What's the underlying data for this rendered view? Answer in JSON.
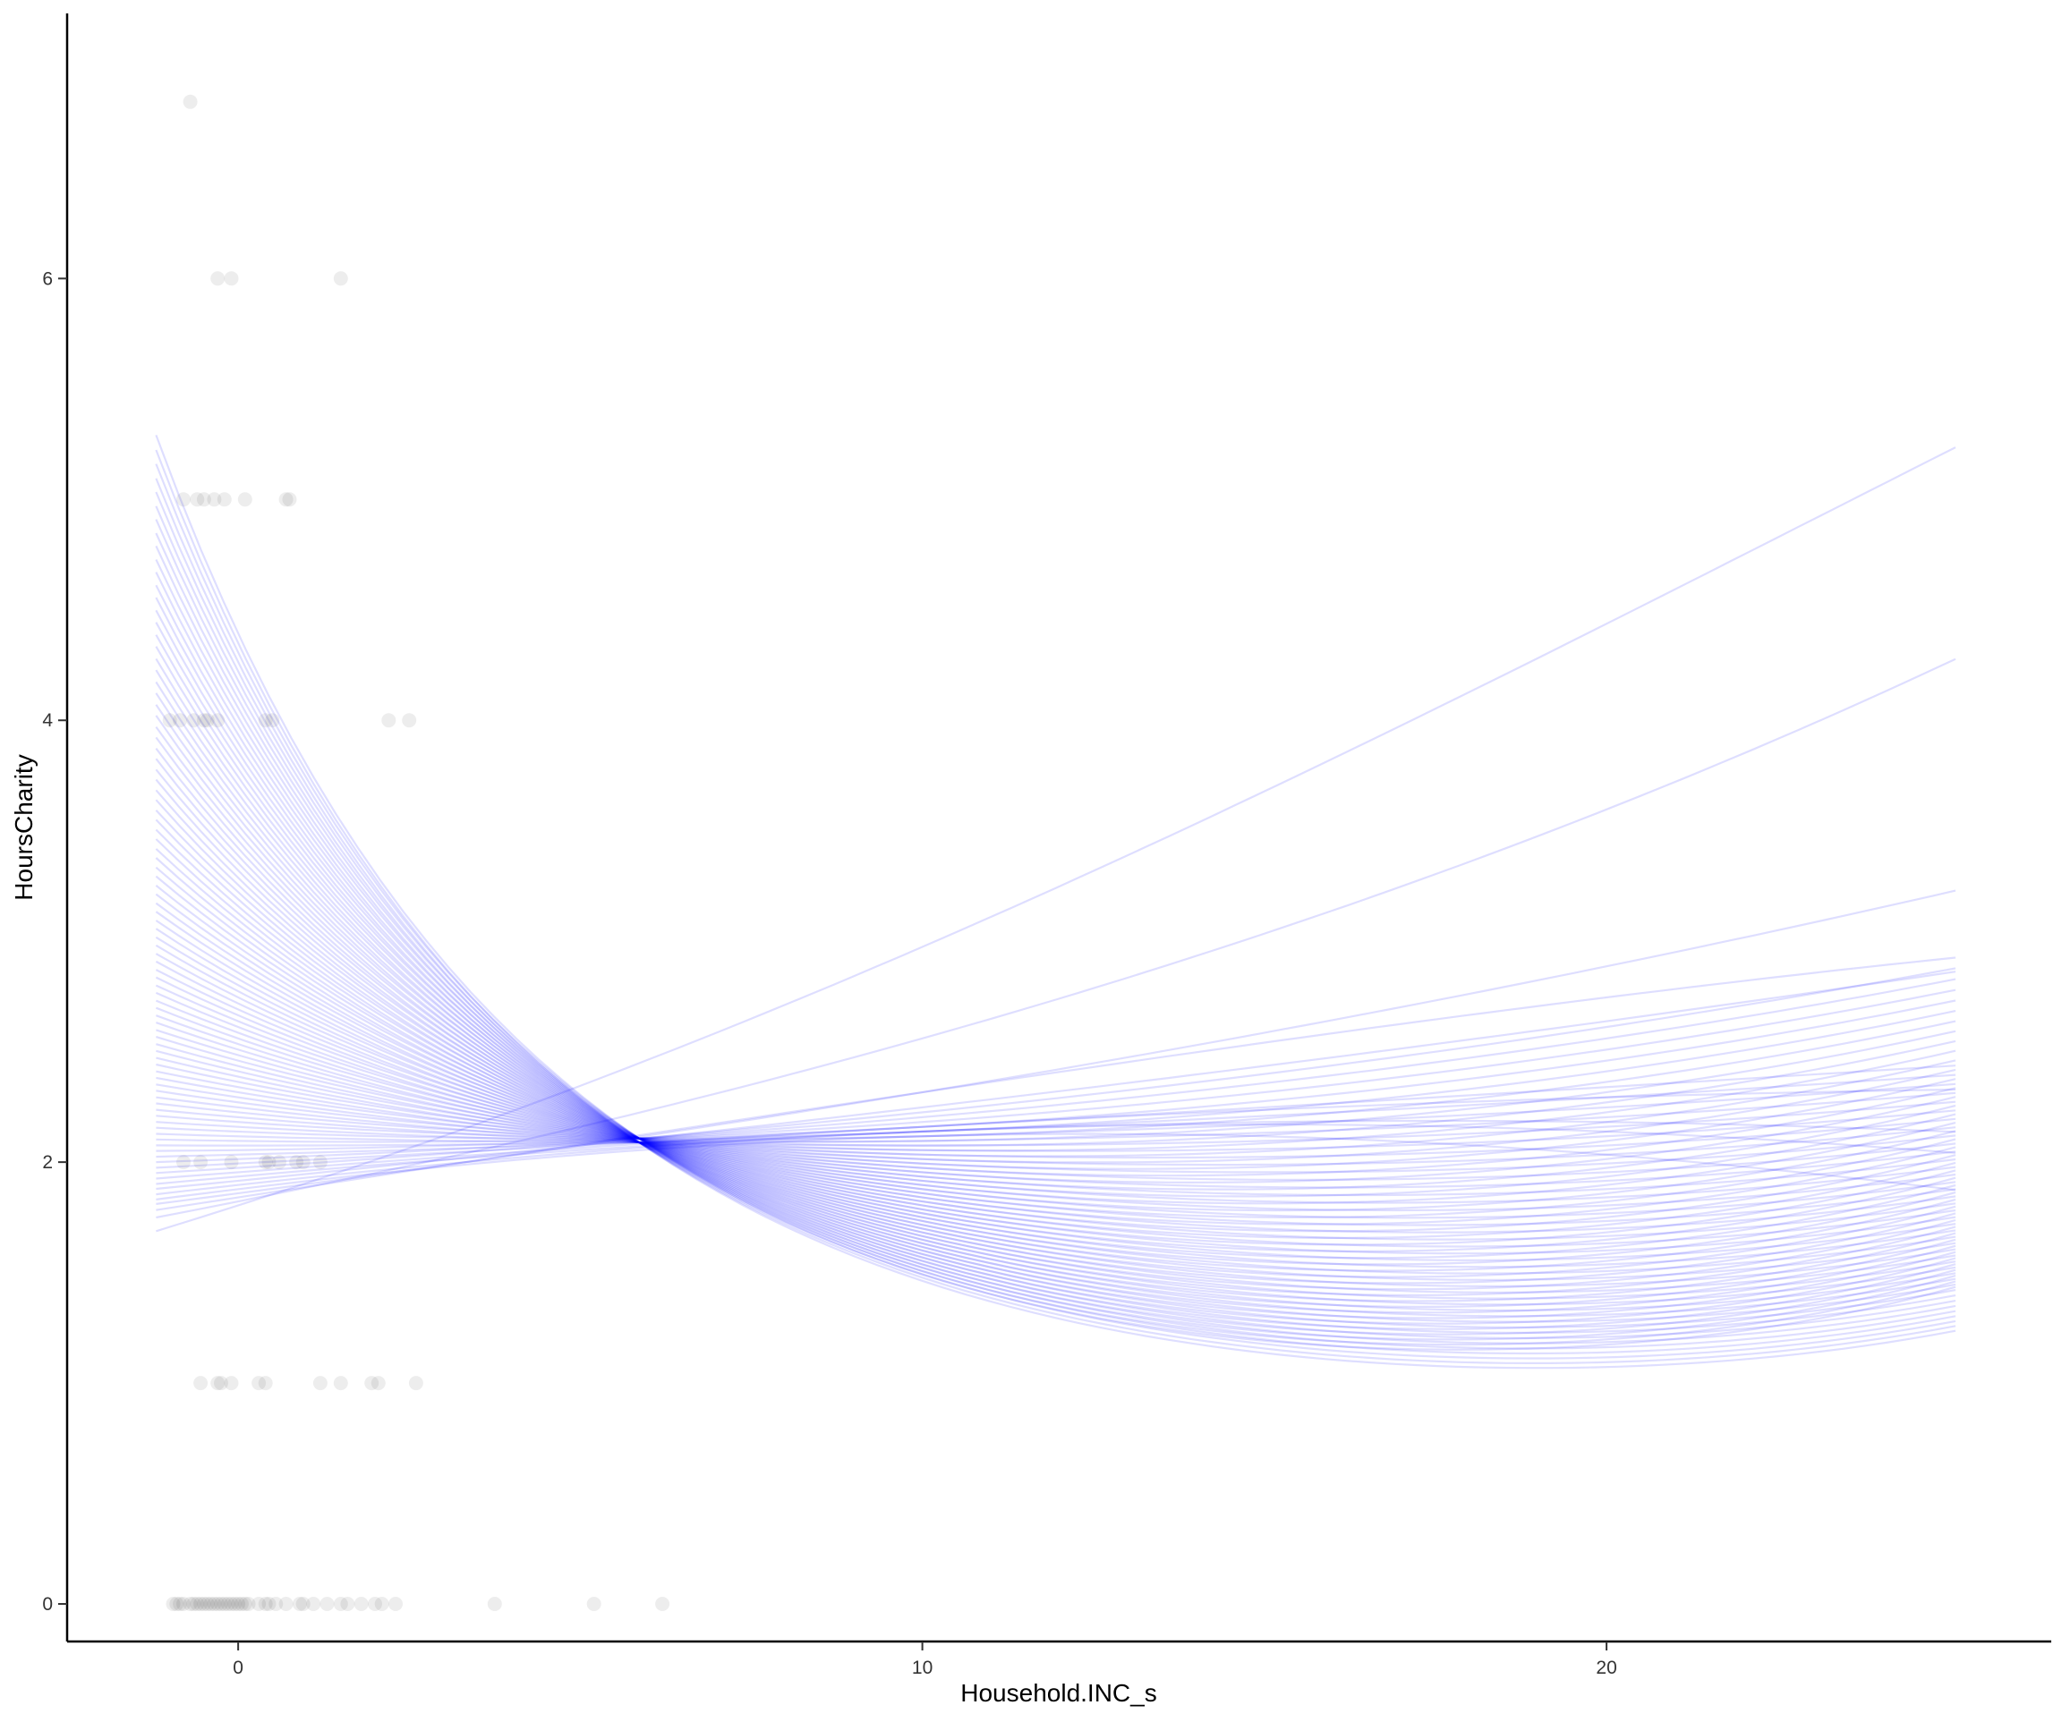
{
  "chart_data": {
    "type": "scatter",
    "title": "",
    "xlabel": "Household.INC_s",
    "ylabel": "HoursCharity",
    "xlim": [
      -2.5,
      26.5
    ],
    "ylim": [
      -0.17,
      7.2
    ],
    "x_ticks": [
      0,
      10,
      20
    ],
    "y_ticks": [
      0,
      2,
      4,
      6
    ],
    "grid": false,
    "legend": "none",
    "point_color": "#000000",
    "point_opacity": 0.07,
    "line_color": "#0000ff",
    "line_opacity": 0.13,
    "points": [
      [
        -0.7,
        6.8
      ],
      [
        -0.3,
        6
      ],
      [
        -0.1,
        6
      ],
      [
        1.5,
        6
      ],
      [
        -0.8,
        5
      ],
      [
        -0.6,
        5
      ],
      [
        -0.5,
        5
      ],
      [
        -0.35,
        5
      ],
      [
        -0.2,
        5
      ],
      [
        0.1,
        5
      ],
      [
        0.7,
        5
      ],
      [
        0.75,
        5
      ],
      [
        -1.0,
        4
      ],
      [
        -0.85,
        4
      ],
      [
        -0.65,
        4
      ],
      [
        -0.5,
        4
      ],
      [
        -0.45,
        4
      ],
      [
        -0.3,
        4
      ],
      [
        0.4,
        4
      ],
      [
        0.5,
        4
      ],
      [
        2.2,
        4
      ],
      [
        2.5,
        4
      ],
      [
        -0.8,
        2
      ],
      [
        -0.55,
        2
      ],
      [
        -0.1,
        2
      ],
      [
        0.4,
        2
      ],
      [
        0.45,
        2
      ],
      [
        0.6,
        2
      ],
      [
        0.85,
        2
      ],
      [
        0.95,
        2
      ],
      [
        1.2,
        2
      ],
      [
        -0.55,
        1
      ],
      [
        -0.3,
        1
      ],
      [
        -0.25,
        1
      ],
      [
        -0.1,
        1
      ],
      [
        0.3,
        1
      ],
      [
        0.4,
        1
      ],
      [
        1.2,
        1
      ],
      [
        1.5,
        1
      ],
      [
        1.95,
        1
      ],
      [
        2.05,
        1
      ],
      [
        2.6,
        1
      ],
      [
        -0.95,
        0
      ],
      [
        -0.9,
        0
      ],
      [
        -0.85,
        0
      ],
      [
        -0.8,
        0
      ],
      [
        -0.7,
        0
      ],
      [
        -0.65,
        0
      ],
      [
        -0.6,
        0
      ],
      [
        -0.55,
        0
      ],
      [
        -0.5,
        0
      ],
      [
        -0.45,
        0
      ],
      [
        -0.4,
        0
      ],
      [
        -0.35,
        0
      ],
      [
        -0.3,
        0
      ],
      [
        -0.25,
        0
      ],
      [
        -0.2,
        0
      ],
      [
        -0.15,
        0
      ],
      [
        -0.1,
        0
      ],
      [
        -0.05,
        0
      ],
      [
        0.0,
        0
      ],
      [
        0.05,
        0
      ],
      [
        0.1,
        0
      ],
      [
        0.15,
        0
      ],
      [
        0.3,
        0
      ],
      [
        0.4,
        0
      ],
      [
        0.45,
        0
      ],
      [
        0.55,
        0
      ],
      [
        0.7,
        0
      ],
      [
        0.9,
        0
      ],
      [
        0.95,
        0
      ],
      [
        1.1,
        0
      ],
      [
        1.3,
        0
      ],
      [
        1.5,
        0
      ],
      [
        1.6,
        0
      ],
      [
        1.8,
        0
      ],
      [
        2.0,
        0
      ],
      [
        2.1,
        0
      ],
      [
        2.3,
        0
      ],
      [
        3.75,
        0
      ],
      [
        5.2,
        0
      ],
      [
        6.2,
        0
      ]
    ],
    "curves": {
      "x_range": [
        -1.2,
        25.1
      ],
      "a": [
        0.59,
        0.6,
        0.61,
        0.62,
        0.63,
        0.64,
        0.65,
        0.66,
        0.67,
        0.68,
        0.69,
        0.7,
        0.71,
        0.72,
        0.73,
        0.74,
        0.75,
        0.76,
        0.77,
        0.78,
        0.79,
        0.8,
        0.81,
        0.82,
        0.83,
        0.84,
        0.85,
        0.86,
        0.87,
        0.88,
        0.89,
        0.9,
        0.91,
        0.92,
        0.93,
        0.94,
        0.95,
        0.96,
        0.97,
        0.98,
        0.99,
        1.0,
        1.01,
        1.02,
        1.03,
        1.04,
        1.05,
        1.06,
        1.07,
        1.08,
        1.09,
        1.1,
        1.11,
        1.12,
        1.13,
        1.14,
        1.15,
        1.16,
        1.17,
        1.18,
        1.19,
        1.2,
        1.21,
        1.22,
        1.23,
        1.24,
        1.25,
        1.26,
        1.27,
        1.28,
        1.29,
        1.3,
        1.31,
        1.32,
        1.33,
        1.34,
        1.35,
        1.36,
        1.37,
        1.38,
        1.39,
        1.4,
        1.41,
        1.42,
        1.43,
        1.44,
        1.45,
        1.46,
        1.47,
        1.48
      ],
      "b": [
        0.055,
        0.034,
        0.026,
        0.022,
        0.02,
        0.018,
        0.016,
        0.014,
        0.012,
        0.01,
        0.008,
        0.006,
        0.004,
        0.002,
        0.0,
        -0.002,
        -0.004,
        -0.006,
        -0.008,
        -0.01,
        -0.012,
        -0.014,
        -0.016,
        -0.018,
        -0.02,
        -0.022,
        -0.024,
        -0.026,
        -0.028,
        -0.03,
        -0.032,
        -0.034,
        -0.036,
        -0.038,
        -0.04,
        -0.042,
        -0.044,
        -0.046,
        -0.048,
        -0.05,
        -0.052,
        -0.054,
        -0.056,
        -0.058,
        -0.06,
        -0.062,
        -0.064,
        -0.066,
        -0.068,
        -0.07,
        -0.072,
        -0.074,
        -0.076,
        -0.078,
        -0.08,
        -0.082,
        -0.084,
        -0.086,
        -0.088,
        -0.09,
        -0.092,
        -0.094,
        -0.096,
        -0.098,
        -0.1,
        -0.102,
        -0.104,
        -0.106,
        -0.108,
        -0.11,
        -0.112,
        -0.114,
        -0.116,
        -0.118,
        -0.12,
        -0.122,
        -0.124,
        -0.126,
        -0.128,
        -0.13,
        -0.132,
        -0.134,
        -0.136,
        -0.138,
        -0.14,
        -0.142,
        -0.144,
        -0.146,
        -0.148,
        -0.15
      ],
      "c": [
        -0.0005,
        0.0,
        -0.0003,
        0.0,
        -0.0008,
        -0.0006,
        0.0,
        -0.0004,
        -0.0002,
        0.0002,
        0.0,
        0.0003,
        0.0001,
        0.0004,
        0.0002,
        0.0005,
        0.0003,
        0.0006,
        0.0004,
        0.0007,
        0.0005,
        0.0008,
        0.0006,
        0.0009,
        0.0007,
        0.001,
        0.0008,
        0.0011,
        0.0009,
        0.0012,
        0.001,
        0.0013,
        0.0011,
        0.0014,
        0.0012,
        0.0015,
        0.0013,
        0.0016,
        0.0014,
        0.0017,
        0.0015,
        0.0018,
        0.0016,
        0.0019,
        0.0017,
        0.002,
        0.0018,
        0.0021,
        0.0019,
        0.0022,
        0.002,
        0.0023,
        0.0021,
        0.0024,
        0.0022,
        0.0025,
        0.0023,
        0.0026,
        0.0024,
        0.0027,
        0.0025,
        0.0028,
        0.0026,
        0.0029,
        0.0027,
        0.003,
        0.0028,
        0.0031,
        0.0029,
        0.0032,
        0.003,
        0.0033,
        0.0031,
        0.0034,
        0.0032,
        0.0035,
        0.0033,
        0.0036,
        0.0034,
        0.0037,
        0.0035,
        0.0038,
        0.0036,
        0.0039,
        0.0037,
        0.004,
        0.0038,
        0.0041,
        0.0039,
        0.0042
      ]
    }
  }
}
